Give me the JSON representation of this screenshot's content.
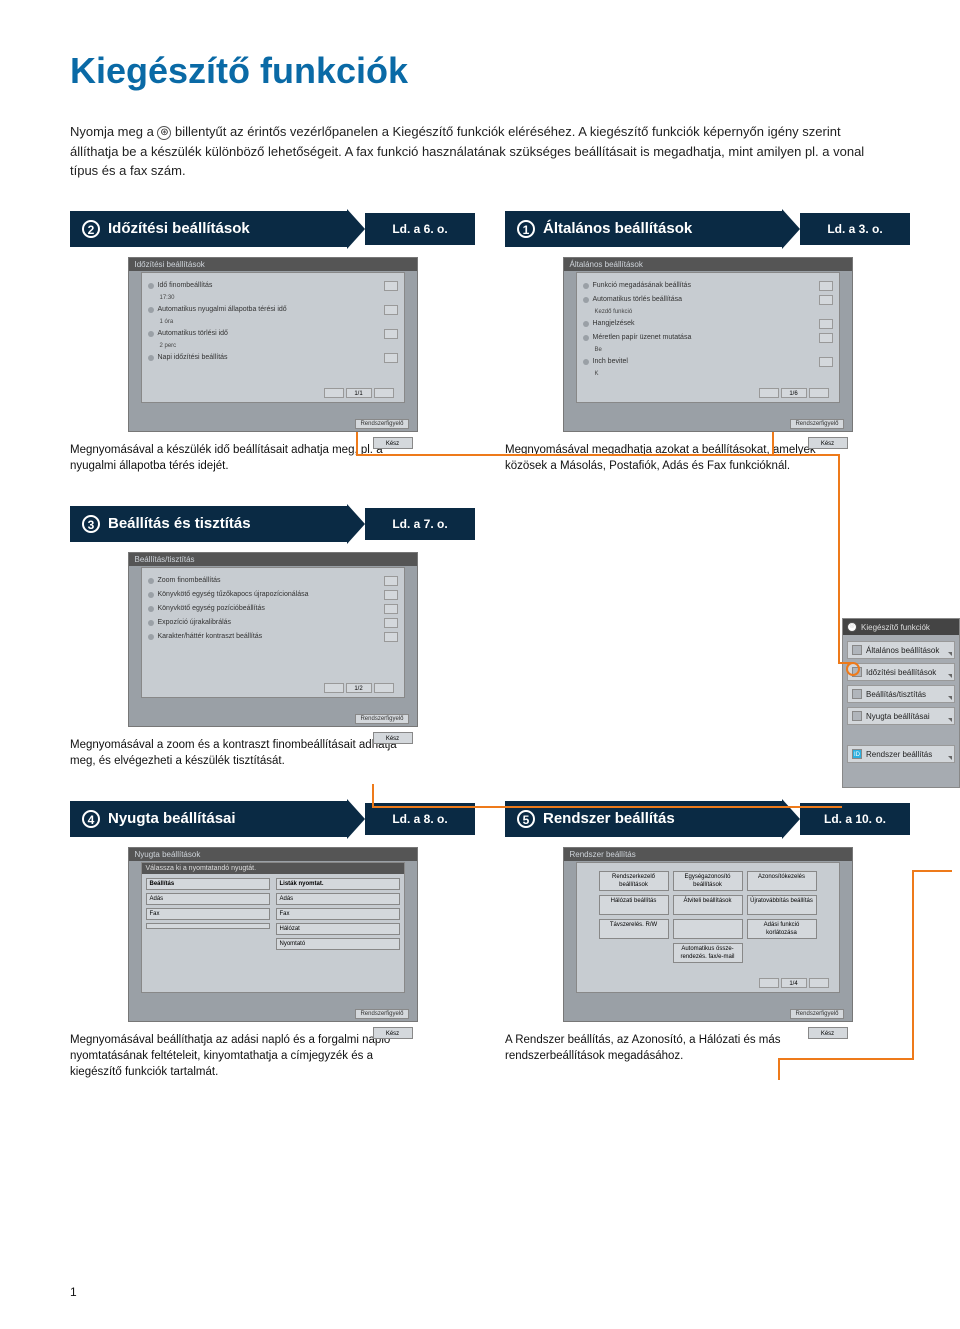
{
  "title": "Kiegészítő funkciók",
  "intro_line1": "Nyomja meg a ",
  "intro_icon": "⊛",
  "intro_line2": " billentyűt az érintős vezérlőpanelen a Kiegészítő funkciók eléréséhez. A kiegészítő funkciók képernyőn igény szerint állíthatja be a készülék különböző lehetőségeit. A fax funkció használatának szükséges beállításait is megadhatja, mint amilyen pl. a vonal típus és a fax szám.",
  "s1": {
    "num": "1",
    "title": "Általános beállítások",
    "ref": "Ld. a 3. o.",
    "caption": "Megnyomásával megadhatja azokat a beállításokat, amelyek közösek a Másolás, Postafiók, Adás és Fax funkcióknál.",
    "scr_head": "Általános beállítások",
    "rows": [
      {
        "label": "Funkció megadásának beállítás",
        "sub": ""
      },
      {
        "label": "Automatikus törlés beállítása",
        "sub": "Kezdő funkció"
      },
      {
        "label": "Hangjelzések",
        "sub": ""
      },
      {
        "label": "Méretlen papír üzenet mutatása",
        "sub": "Be"
      },
      {
        "label": "Inch bevitel",
        "sub": "K"
      }
    ],
    "pager": "1/6",
    "close": "Kész",
    "foot": "Rendszerfigyelő"
  },
  "s2": {
    "num": "2",
    "title": "Időzítési beállítások",
    "ref": "Ld. a 6. o.",
    "caption": "Megnyomásával a készülék idő beállításait adhatja meg, pl. a nyugalmi állapotba térés idejét.",
    "scr_head": "Időzítési beállítások",
    "rows": [
      {
        "label": "Idő finombeállítás",
        "sub": "17:30"
      },
      {
        "label": "Automatikus nyugalmi állapotba térési idő",
        "sub": "1 óra"
      },
      {
        "label": "Automatikus törlési idő",
        "sub": "2 perc"
      },
      {
        "label": "Napi időzítési beállítás",
        "sub": ""
      }
    ],
    "pager": "1/1",
    "close": "Kész",
    "foot": "Rendszerfigyelő"
  },
  "s3": {
    "num": "3",
    "title": "Beállítás és tisztítás",
    "ref": "Ld. a 7. o.",
    "caption": "Megnyomásával a zoom és a kontraszt finombeállításait adhatja meg, és elvégezheti a készülék tisztítását.",
    "scr_head": "Beállítás/tisztítás",
    "rows": [
      {
        "label": "Zoom finombeállítás",
        "sub": ""
      },
      {
        "label": "Könyvkötő egység tűzőkapocs újrapozícionálása",
        "sub": ""
      },
      {
        "label": "Könyvkötő egység pozícióbeállítás",
        "sub": ""
      },
      {
        "label": "Expozíció újrakalibrálás",
        "sub": ""
      },
      {
        "label": "Karakter/háttér kontraszt beállítás",
        "sub": ""
      }
    ],
    "pager": "1/2",
    "close": "Kész",
    "foot": "Rendszerfigyelő"
  },
  "s4": {
    "num": "4",
    "title": "Nyugta beállításai",
    "ref": "Ld. a 8. o.",
    "caption": "Megnyomásával beállíthatja az adási napló és a forgalmi napló nyomtatásának feltételeit, kinyomtathatja a címjegyzék és a kiegészítő funkciók tartalmát.",
    "scr_head": "Nyugta beállítások",
    "head2": "Válassza ki a nyomtatandó nyugtát.",
    "col1_head": "Beállítás",
    "col2_head": "Listák nyomtat.",
    "left": [
      "Adás",
      "Fax",
      ""
    ],
    "right": [
      "Adás",
      "Fax",
      "Hálózat",
      "Nyomtató"
    ],
    "close": "Kész",
    "foot": "Rendszerfigyelő"
  },
  "s5": {
    "num": "5",
    "title": "Rendszer beállítás",
    "ref": "Ld. a 10. o.",
    "caption": "A Rendszer beállítás, az Azonosító, a Hálózati és más rendszerbeállítások megadásához.",
    "scr_head": "Rendszer beállítás",
    "buttons": [
      "Rendszerkezelő beállítások",
      "Egységazonosító beállítások",
      "Azonosítókezelés",
      "Hálózati beállítás",
      "Átviteli beállítások",
      "Újratovábbítás beállítás",
      "Távszerelés. R/W",
      "",
      "Adási funkció korlátozása",
      "Automatikus össze- rendezés. fax/e-mail"
    ],
    "pager": "1/4",
    "close": "Kész",
    "foot": "Rendszerfigyelő"
  },
  "sidemenu": {
    "head": "Kiegészítő funkciók",
    "items": [
      "Általános beállítások",
      "Időzítési beállítások",
      "Beállítás/tisztítás",
      "Nyugta beállításai"
    ],
    "system": "Rendszer beállítás",
    "id_label": "ID"
  },
  "pagenum": "1",
  "colors": {
    "accent": "#ee7a1a"
  }
}
